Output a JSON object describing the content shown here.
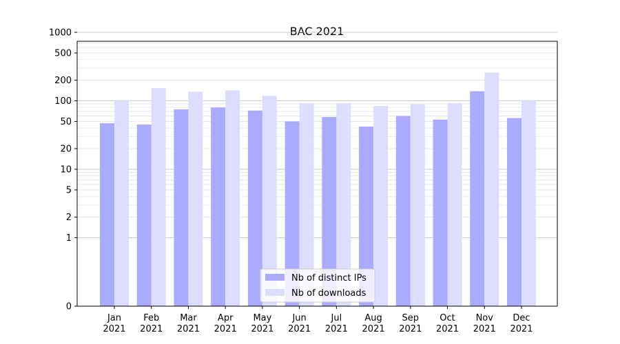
{
  "chart_data": {
    "type": "bar",
    "title": "BAC 2021",
    "xlabel": "",
    "ylabel": "",
    "yscale": "symlog",
    "ylim": [
      0,
      1300
    ],
    "categories": [
      {
        "month": "Jan",
        "year": "2021"
      },
      {
        "month": "Feb",
        "year": "2021"
      },
      {
        "month": "Mar",
        "year": "2021"
      },
      {
        "month": "Apr",
        "year": "2021"
      },
      {
        "month": "May",
        "year": "2021"
      },
      {
        "month": "Jun",
        "year": "2021"
      },
      {
        "month": "Jul",
        "year": "2021"
      },
      {
        "month": "Aug",
        "year": "2021"
      },
      {
        "month": "Sep",
        "year": "2021"
      },
      {
        "month": "Oct",
        "year": "2021"
      },
      {
        "month": "Nov",
        "year": "2021"
      },
      {
        "month": "Dec",
        "year": "2021"
      }
    ],
    "series": [
      {
        "name": "Nb of distinct IPs",
        "color": "#aaaaff",
        "values": [
          47,
          45,
          75,
          80,
          72,
          50,
          58,
          42,
          60,
          53,
          138,
          56
        ]
      },
      {
        "name": "Nb of downloads",
        "color": "#ddddff",
        "values": [
          102,
          153,
          135,
          142,
          118,
          92,
          92,
          84,
          89,
          92,
          258,
          102
        ]
      }
    ],
    "yticks": [
      {
        "value": 0,
        "label": "0"
      },
      {
        "value": 1,
        "label": "1"
      },
      {
        "value": 2,
        "label": "2"
      },
      {
        "value": 5,
        "label": "5"
      },
      {
        "value": 10,
        "label": "10"
      },
      {
        "value": 20,
        "label": "20"
      },
      {
        "value": 50,
        "label": "50"
      },
      {
        "value": 100,
        "label": "100"
      },
      {
        "value": 200,
        "label": "200"
      },
      {
        "value": 500,
        "label": "500"
      },
      {
        "value": 1000,
        "label": "1000"
      }
    ],
    "grid": true,
    "legend_position": "bottom-center"
  }
}
